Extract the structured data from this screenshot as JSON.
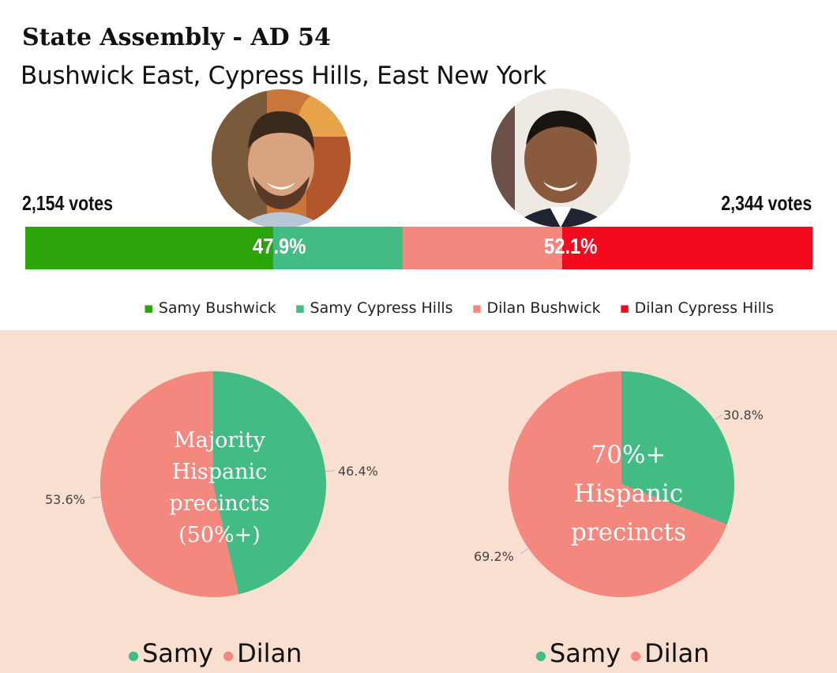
{
  "title": "State Assembly - AD 54",
  "subtitle": "Bushwick East, Cypress Hills, East New York",
  "candidates": {
    "left": {
      "votes_label": "2,154 votes",
      "percent_label": "47.9%"
    },
    "right": {
      "votes_label": "2,344 votes",
      "percent_label": "52.1%"
    }
  },
  "colors": {
    "samy_bushwick": "#2ba40a",
    "samy_cypress": "#43bb85",
    "dilan_bushwick": "#f4887e",
    "dilan_cypress": "#f20a1e",
    "panel_bg": "#f8dfcf"
  },
  "legend_top": [
    {
      "label": "Samy Bushwick",
      "color": "#2ba40a"
    },
    {
      "label": "Samy Cypress Hills",
      "color": "#43bb85"
    },
    {
      "label": "Dilan Bushwick",
      "color": "#f4887e"
    },
    {
      "label": "Dilan Cypress Hills",
      "color": "#f20a1e"
    }
  ],
  "chart_data": [
    {
      "type": "bar",
      "orientation": "horizontal-stacked",
      "categories": [
        "Samy Bushwick",
        "Samy Cypress Hills",
        "Dilan Bushwick",
        "Dilan Cypress Hills"
      ],
      "values": [
        31.5,
        16.4,
        20.3,
        31.8
      ],
      "totals": {
        "Samy": 47.9,
        "Dilan": 52.1
      },
      "unit": "%"
    },
    {
      "type": "pie",
      "title": "Majority Hispanic precincts (50%+)",
      "center_text": "Majority\nHispanic\nprecincts\n(50%+)",
      "slices": [
        {
          "label": "Samy",
          "value": 46.4,
          "display": "46.4%",
          "color": "#43bb85"
        },
        {
          "label": "Dilan",
          "value": 53.6,
          "display": "53.6%",
          "color": "#f4887e"
        }
      ],
      "legend": [
        "Samy",
        "Dilan"
      ]
    },
    {
      "type": "pie",
      "title": "70%+ Hispanic precincts",
      "center_text": "70%+\nHispanic\nprecincts",
      "slices": [
        {
          "label": "Samy",
          "value": 30.8,
          "display": "30.8%",
          "color": "#43bb85"
        },
        {
          "label": "Dilan",
          "value": 69.2,
          "display": "69.2%",
          "color": "#f4887e"
        }
      ],
      "legend": [
        "Samy",
        "Dilan"
      ]
    }
  ]
}
